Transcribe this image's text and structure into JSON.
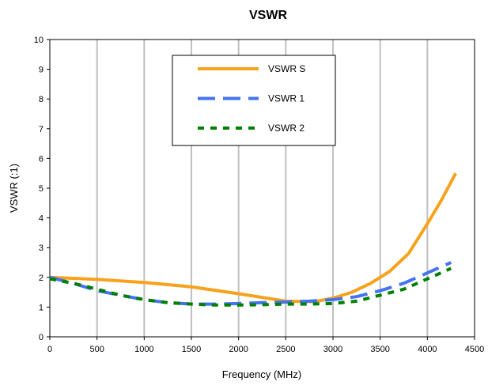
{
  "chart_data": {
    "type": "line",
    "title": "VSWR",
    "xlabel": "Frequency (MHz)",
    "ylabel": "VSWR (:1)",
    "xlim": [
      0,
      4500
    ],
    "ylim": [
      0,
      10
    ],
    "x_ticks": [
      "0",
      "500",
      "1000",
      "1500",
      "2000",
      "2500",
      "3000",
      "3500",
      "4000",
      "4500"
    ],
    "y_ticks": [
      "0",
      "1",
      "2",
      "3",
      "4",
      "5",
      "6",
      "7",
      "8",
      "9",
      "10"
    ],
    "grid": "vertical",
    "legend_position": "top-center",
    "series": [
      {
        "name": "VSWR S",
        "color": "#F7A21B",
        "style": "solid",
        "x": [
          0,
          500,
          1000,
          1500,
          2000,
          2500,
          2800,
          3000,
          3200,
          3400,
          3600,
          3800,
          4000,
          4150,
          4300
        ],
        "y": [
          2.0,
          1.93,
          1.83,
          1.68,
          1.45,
          1.2,
          1.18,
          1.3,
          1.5,
          1.8,
          2.2,
          2.8,
          3.8,
          4.6,
          5.5
        ]
      },
      {
        "name": "VSWR 1",
        "color": "#4472F2",
        "style": "dashed",
        "x": [
          0,
          250,
          500,
          750,
          1000,
          1250,
          1500,
          1750,
          2000,
          2250,
          2500,
          2750,
          3000,
          3250,
          3500,
          3750,
          4000,
          4250
        ],
        "y": [
          2.0,
          1.8,
          1.55,
          1.4,
          1.25,
          1.15,
          1.1,
          1.1,
          1.12,
          1.15,
          1.17,
          1.2,
          1.25,
          1.35,
          1.55,
          1.8,
          2.15,
          2.5
        ]
      },
      {
        "name": "VSWR 2",
        "color": "#008000",
        "style": "dotted",
        "x": [
          0,
          250,
          500,
          750,
          1000,
          1250,
          1500,
          1750,
          2000,
          2250,
          2500,
          2750,
          3000,
          3250,
          3500,
          3750,
          4000,
          4250
        ],
        "y": [
          1.95,
          1.8,
          1.6,
          1.4,
          1.25,
          1.15,
          1.1,
          1.07,
          1.07,
          1.08,
          1.1,
          1.1,
          1.12,
          1.2,
          1.4,
          1.6,
          1.95,
          2.3
        ]
      }
    ]
  }
}
